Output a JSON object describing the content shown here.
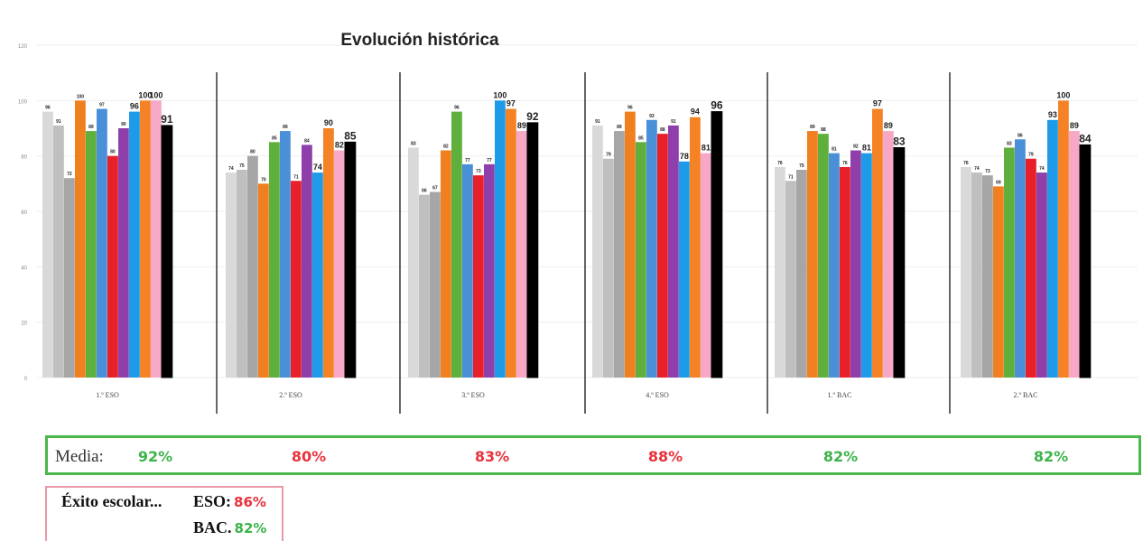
{
  "chart_data": {
    "type": "bar",
    "title": "Evolución histórica",
    "ylim": [
      0,
      120
    ],
    "y_ticks": [
      "0",
      "20",
      "40",
      "60",
      "80",
      "100",
      "120"
    ],
    "groups": [
      {
        "label": "1.º ESO",
        "values": [
          96,
          91,
          72,
          100,
          89,
          97,
          80,
          90,
          96,
          100,
          100,
          91
        ]
      },
      {
        "label": "2.º ESO",
        "values": [
          74,
          75,
          80,
          70,
          85,
          89,
          71,
          84,
          74,
          90,
          82,
          85
        ]
      },
      {
        "label": "3.º ESO",
        "values": [
          83,
          66,
          67,
          82,
          96,
          77,
          73,
          77,
          100,
          97,
          89,
          92
        ]
      },
      {
        "label": "4.º ESO",
        "values": [
          91,
          79,
          89,
          96,
          85,
          93,
          88,
          91,
          78,
          94,
          81,
          96
        ]
      },
      {
        "label": "1.º BAC",
        "values": [
          76,
          71,
          75,
          89,
          88,
          81,
          76,
          82,
          81,
          97,
          89,
          83
        ]
      },
      {
        "label": "2.º BAC",
        "values": [
          76,
          74,
          73,
          69,
          83,
          86,
          79,
          74,
          93,
          100,
          89,
          84
        ]
      }
    ],
    "series_colors": [
      "#d9d9d9",
      "#bfbfbf",
      "#a6a6a6",
      "#f07f1f",
      "#5faf3c",
      "#4a90d9",
      "#e8202a",
      "#8e3faa",
      "#1e9be8",
      "#f58224",
      "#f6a8c6",
      "#000000"
    ],
    "grid": true,
    "legend": "none"
  },
  "media": {
    "label": "Media:",
    "values": [
      {
        "text": "92%",
        "color": "#3cb34a"
      },
      {
        "text": "80%",
        "color": "#e8323c"
      },
      {
        "text": "83%",
        "color": "#e8323c"
      },
      {
        "text": "88%",
        "color": "#e8323c"
      },
      {
        "text": "82%",
        "color": "#3cb34a"
      },
      {
        "text": "82%",
        "color": "#3cb34a"
      }
    ]
  },
  "exito": {
    "label": "Éxito escolar...",
    "eso_label": "ESO:",
    "eso_value": "86%",
    "eso_color": "#e8323c",
    "bac_label": "BAC.",
    "bac_value": "82%",
    "bac_color": "#3cb34a"
  }
}
